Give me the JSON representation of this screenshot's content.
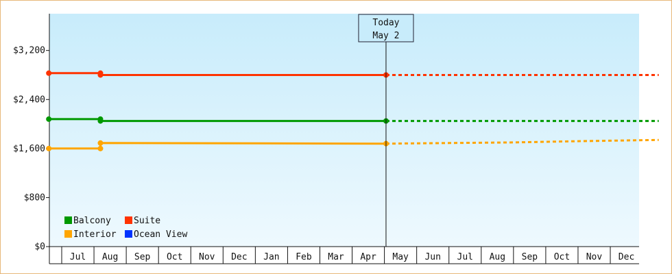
{
  "chart_data": {
    "type": "line",
    "title": "",
    "xlabel": "",
    "ylabel": "",
    "ylim": [
      0,
      3800
    ],
    "yticks": [
      0,
      800,
      1600,
      2400,
      3200
    ],
    "ytick_labels": [
      "$0",
      "$800",
      "$1,600",
      "$2,400",
      "$3,200"
    ],
    "x_months": [
      "Jul",
      "Aug",
      "Sep",
      "Oct",
      "Nov",
      "Dec",
      "Jan",
      "Feb",
      "Mar",
      "Apr",
      "May",
      "Jun",
      "Jul",
      "Aug",
      "Sep",
      "Oct",
      "Nov",
      "Dec"
    ],
    "today_marker": {
      "line1": "Today",
      "line2": "May 2",
      "x": 10.05
    },
    "grid": false,
    "legend_position": "bottom-left",
    "series": [
      {
        "name": "Balcony",
        "color": "#009900",
        "points": [
          [
            -0.4,
            2080
          ],
          [
            1.2,
            2080
          ],
          [
            1.2,
            2050
          ],
          [
            10.05,
            2050
          ]
        ],
        "projection": [
          [
            10.05,
            2050
          ],
          [
            18.5,
            2050
          ]
        ]
      },
      {
        "name": "Suite",
        "color": "#ff3300",
        "points": [
          [
            -0.4,
            2830
          ],
          [
            1.2,
            2830
          ],
          [
            1.2,
            2800
          ],
          [
            10.05,
            2800
          ]
        ],
        "projection": [
          [
            10.05,
            2800
          ],
          [
            18.5,
            2800
          ]
        ]
      },
      {
        "name": "Interior",
        "color": "#ffa500",
        "points": [
          [
            -0.4,
            1600
          ],
          [
            1.2,
            1600
          ],
          [
            1.2,
            1690
          ],
          [
            10.05,
            1680
          ]
        ],
        "projection": [
          [
            10.05,
            1680
          ],
          [
            12.0,
            1690
          ],
          [
            14.0,
            1700
          ],
          [
            16.0,
            1720
          ],
          [
            18.5,
            1740
          ]
        ]
      },
      {
        "name": "Ocean View",
        "color": "#0033ff",
        "points": [],
        "projection": []
      }
    ]
  }
}
